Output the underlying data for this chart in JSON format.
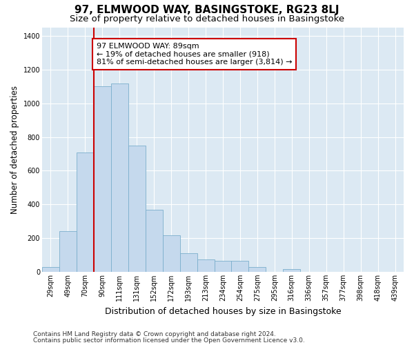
{
  "title": "97, ELMWOOD WAY, BASINGSTOKE, RG23 8LJ",
  "subtitle": "Size of property relative to detached houses in Basingstoke",
  "xlabel": "Distribution of detached houses by size in Basingstoke",
  "ylabel": "Number of detached properties",
  "categories": [
    "29sqm",
    "49sqm",
    "70sqm",
    "90sqm",
    "111sqm",
    "131sqm",
    "152sqm",
    "172sqm",
    "193sqm",
    "213sqm",
    "234sqm",
    "254sqm",
    "275sqm",
    "295sqm",
    "316sqm",
    "336sqm",
    "357sqm",
    "377sqm",
    "398sqm",
    "418sqm",
    "439sqm"
  ],
  "values": [
    30,
    240,
    710,
    1100,
    1120,
    750,
    370,
    215,
    110,
    75,
    65,
    65,
    30,
    0,
    15,
    0,
    0,
    0,
    0,
    0,
    0
  ],
  "bar_color": "#c5d9ed",
  "bar_edge_color": "#7aaecc",
  "vline_position": 2.5,
  "vline_color": "#cc0000",
  "annotation_text": "97 ELMWOOD WAY: 89sqm\n← 19% of detached houses are smaller (918)\n81% of semi-detached houses are larger (3,814) →",
  "annotation_box_facecolor": "white",
  "annotation_box_edgecolor": "#cc0000",
  "ylim": [
    0,
    1450
  ],
  "yticks": [
    0,
    200,
    400,
    600,
    800,
    1000,
    1200,
    1400
  ],
  "footnote_line1": "Contains HM Land Registry data © Crown copyright and database right 2024.",
  "footnote_line2": "Contains public sector information licensed under the Open Government Licence v3.0.",
  "bg_color": "#dce9f3",
  "grid_color": "#ffffff",
  "title_fontsize": 11,
  "subtitle_fontsize": 9.5,
  "xlabel_fontsize": 9,
  "ylabel_fontsize": 8.5,
  "tick_fontsize": 7,
  "annotation_fontsize": 8,
  "footnote_fontsize": 6.5
}
